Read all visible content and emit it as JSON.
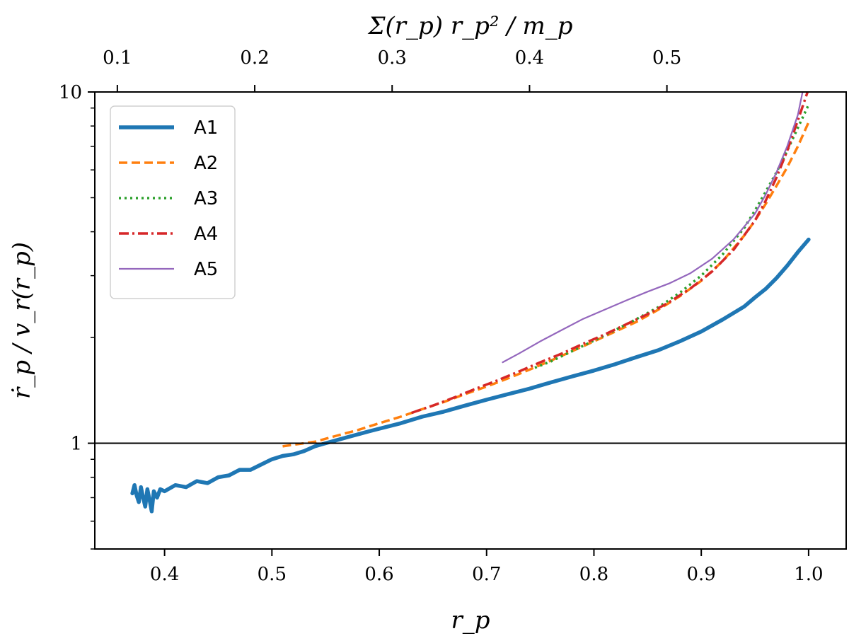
{
  "chart_data": {
    "type": "line",
    "title": "",
    "xlabel": "r_p",
    "ylabel": "ṙ_p / v_r(r_p)",
    "top_xlabel": "Σ(r_p) r_p² / m_p",
    "xlim": [
      0.335,
      1.035
    ],
    "ylim": [
      0.5,
      10
    ],
    "yscale": "log",
    "x_ticks": [
      "0.4",
      "0.5",
      "0.6",
      "0.7",
      "0.8",
      "0.9",
      "1.0"
    ],
    "top_ticks": [
      "0.1",
      "0.2",
      "0.3",
      "0.4",
      "0.5"
    ],
    "top_tick_positions_rp": [
      0.356,
      0.484,
      0.612,
      0.74,
      0.868
    ],
    "y_ticks": [
      "1",
      "10"
    ],
    "reference_line_y": 1,
    "legend_position": "top-left",
    "series": [
      {
        "name": "A1",
        "color": "#1f77b4",
        "style": "solid-thick",
        "x": [
          0.37,
          0.372,
          0.374,
          0.376,
          0.378,
          0.38,
          0.382,
          0.384,
          0.386,
          0.388,
          0.39,
          0.393,
          0.396,
          0.4,
          0.41,
          0.42,
          0.43,
          0.44,
          0.45,
          0.46,
          0.47,
          0.48,
          0.49,
          0.5,
          0.51,
          0.52,
          0.53,
          0.54,
          0.55,
          0.56,
          0.57,
          0.58,
          0.59,
          0.6,
          0.62,
          0.64,
          0.66,
          0.68,
          0.7,
          0.72,
          0.74,
          0.76,
          0.78,
          0.8,
          0.82,
          0.84,
          0.86,
          0.88,
          0.9,
          0.92,
          0.94,
          0.95,
          0.96,
          0.97,
          0.98,
          0.99,
          1.0
        ],
        "y": [
          0.72,
          0.76,
          0.71,
          0.68,
          0.75,
          0.7,
          0.66,
          0.74,
          0.69,
          0.64,
          0.73,
          0.7,
          0.74,
          0.73,
          0.76,
          0.75,
          0.78,
          0.77,
          0.8,
          0.81,
          0.84,
          0.84,
          0.87,
          0.9,
          0.92,
          0.93,
          0.95,
          0.98,
          1.0,
          1.02,
          1.04,
          1.06,
          1.08,
          1.1,
          1.14,
          1.19,
          1.23,
          1.28,
          1.33,
          1.38,
          1.43,
          1.49,
          1.55,
          1.61,
          1.68,
          1.76,
          1.84,
          1.95,
          2.08,
          2.25,
          2.45,
          2.6,
          2.75,
          2.95,
          3.2,
          3.5,
          3.8
        ]
      },
      {
        "name": "A2",
        "color": "#ff7f0e",
        "style": "dashed",
        "x": [
          0.51,
          0.52,
          0.53,
          0.54,
          0.55,
          0.56,
          0.57,
          0.58,
          0.6,
          0.62,
          0.64,
          0.66,
          0.68,
          0.7,
          0.72,
          0.74,
          0.76,
          0.78,
          0.8,
          0.82,
          0.84,
          0.86,
          0.88,
          0.9,
          0.92,
          0.94,
          0.95,
          0.96,
          0.97,
          0.98,
          0.99,
          1.0
        ],
        "y": [
          0.98,
          0.99,
          1.0,
          1.01,
          1.03,
          1.05,
          1.07,
          1.09,
          1.14,
          1.19,
          1.25,
          1.31,
          1.38,
          1.45,
          1.53,
          1.62,
          1.72,
          1.83,
          1.95,
          2.08,
          2.22,
          2.4,
          2.62,
          2.9,
          3.3,
          3.9,
          4.3,
          4.8,
          5.4,
          6.1,
          7.0,
          8.2
        ]
      },
      {
        "name": "A3",
        "color": "#2ca02c",
        "style": "dotted",
        "x": [
          0.745,
          0.76,
          0.78,
          0.8,
          0.82,
          0.84,
          0.86,
          0.88,
          0.9,
          0.92,
          0.94,
          0.95,
          0.96,
          0.97,
          0.98,
          0.99,
          1.0
        ],
        "y": [
          1.64,
          1.71,
          1.83,
          1.96,
          2.1,
          2.26,
          2.44,
          2.68,
          3.0,
          3.45,
          4.1,
          4.6,
          5.2,
          5.9,
          6.8,
          7.9,
          9.2
        ]
      },
      {
        "name": "A4",
        "color": "#d62728",
        "style": "dashdot",
        "x": [
          0.63,
          0.65,
          0.67,
          0.69,
          0.71,
          0.73,
          0.75,
          0.77,
          0.79,
          0.81,
          0.83,
          0.85,
          0.87,
          0.89,
          0.91,
          0.93,
          0.95,
          0.96,
          0.97,
          0.98,
          0.99,
          1.0
        ],
        "y": [
          1.22,
          1.28,
          1.35,
          1.43,
          1.51,
          1.6,
          1.7,
          1.8,
          1.92,
          2.04,
          2.18,
          2.33,
          2.52,
          2.76,
          3.08,
          3.55,
          4.3,
          4.9,
          5.7,
          6.8,
          8.3,
          10.2
        ]
      },
      {
        "name": "A5",
        "color": "#9467bd",
        "style": "solid-thin",
        "x": [
          0.715,
          0.73,
          0.75,
          0.77,
          0.79,
          0.81,
          0.83,
          0.85,
          0.87,
          0.89,
          0.91,
          0.93,
          0.95,
          0.96,
          0.97,
          0.98,
          0.99,
          0.995
        ],
        "y": [
          1.7,
          1.8,
          1.95,
          2.1,
          2.26,
          2.4,
          2.55,
          2.7,
          2.85,
          3.05,
          3.35,
          3.8,
          4.5,
          5.1,
          5.9,
          7.0,
          8.6,
          10.2
        ]
      }
    ]
  }
}
